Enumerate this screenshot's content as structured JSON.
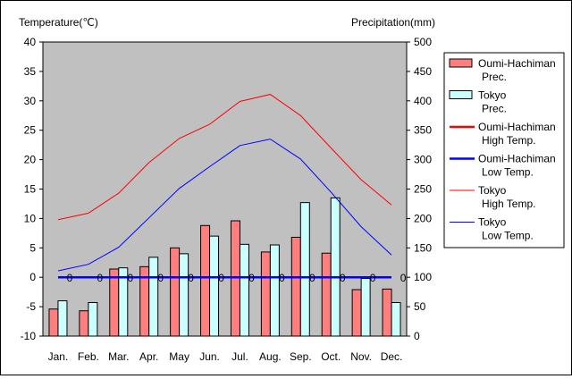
{
  "chart_data": {
    "type": "bar",
    "left_axis_title": "Temperature(℃)",
    "right_axis_title": "Precipitation(mm)",
    "categories": [
      "Jan.",
      "Feb.",
      "Mar.",
      "Apr.",
      "May",
      "Jun.",
      "Jul.",
      "Aug.",
      "Sep.",
      "Oct.",
      "Nov.",
      "Dec."
    ],
    "ylim_left": [
      -10,
      40
    ],
    "ylim_right": [
      0,
      500
    ],
    "left_ticks": [
      40,
      35,
      30,
      25,
      20,
      15,
      10,
      5,
      0,
      -5,
      -10
    ],
    "right_ticks": [
      500,
      450,
      400,
      350,
      300,
      250,
      200,
      150,
      100,
      50,
      0
    ],
    "grid": false,
    "legend_position": "right",
    "plot_background": "#c0c0c0",
    "bar_series": [
      {
        "legend": [
          "Oumi-Hachiman",
          "Prec."
        ],
        "color": "#ff7f7f",
        "values": [
          46,
          43,
          114,
          118,
          150,
          188,
          196,
          143,
          168,
          141,
          79,
          80
        ]
      },
      {
        "legend": [
          "Tokyo",
          "Prec."
        ],
        "color": "#ccffff",
        "values": [
          60,
          57,
          116,
          134,
          140,
          170,
          156,
          155,
          227,
          235,
          98,
          57
        ]
      }
    ],
    "line_series": [
      {
        "legend": [
          "Oumi-Hachiman",
          "High Temp."
        ],
        "color": "#ff0000",
        "width": 2.5,
        "values": [
          0,
          0,
          0,
          0,
          0,
          0,
          0,
          0,
          0,
          0,
          0,
          0
        ]
      },
      {
        "legend": [
          "Oumi-Hachiman",
          "Low Temp."
        ],
        "color": "#0000ff",
        "width": 2.5,
        "values": [
          0,
          0,
          0,
          0,
          0,
          0,
          0,
          0,
          0,
          0,
          0,
          0
        ]
      },
      {
        "legend": [
          "Tokyo",
          "High Temp."
        ],
        "color": "#ff0000",
        "width": 1,
        "values": [
          9.8,
          10.9,
          14.3,
          19.5,
          23.6,
          26.0,
          29.9,
          31.1,
          27.5,
          22.0,
          16.6,
          12.3
        ]
      },
      {
        "legend": [
          "Tokyo",
          "Low Temp."
        ],
        "color": "#0000ff",
        "width": 1,
        "values": [
          1.1,
          2.2,
          5.1,
          10.1,
          15.1,
          18.8,
          22.4,
          23.5,
          20.1,
          14.5,
          8.6,
          3.8
        ]
      }
    ],
    "zero_marker_labels": [
      "0",
      "0",
      "0",
      "0",
      "0",
      "0",
      "0",
      "0",
      "0",
      "0",
      "0",
      "0"
    ]
  }
}
